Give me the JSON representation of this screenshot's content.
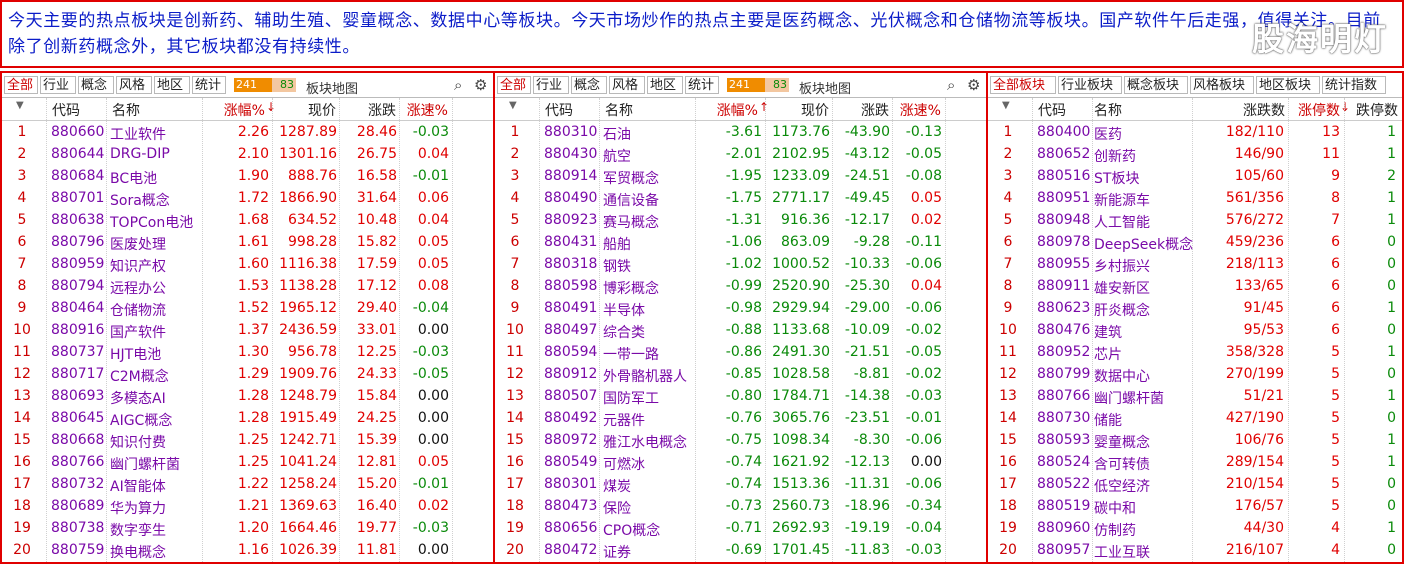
{
  "banner": {
    "text": "今天主要的热点板块是创新药、辅助生殖、婴童概念、数据中心等板块。今天市场炒作的热点主要是医药概念、光伏概念和仓储物流等板块。国产软件午后走强，值得关注。目前除了创新药概念外，其它板块都没有持续性。",
    "watermark": "股海明灯"
  },
  "panel1": {
    "tabs": [
      "全部",
      "行业",
      "概念",
      "风格",
      "地区",
      "统计"
    ],
    "up_count": "241",
    "down_count": "83",
    "map_label": "板块地图",
    "columns": [
      "代码",
      "名称",
      "涨幅%",
      "现价",
      "涨跌",
      "涨速%"
    ],
    "sort_indicator": "↓",
    "rows": [
      [
        "1",
        "880660",
        "工业软件",
        "2.26",
        "1287.89",
        "28.46",
        "-0.03"
      ],
      [
        "2",
        "880644",
        "DRG-DIP",
        "2.10",
        "1301.16",
        "26.75",
        "0.04"
      ],
      [
        "3",
        "880684",
        "BC电池",
        "1.90",
        "888.76",
        "16.58",
        "-0.01"
      ],
      [
        "4",
        "880701",
        "Sora概念",
        "1.72",
        "1866.90",
        "31.64",
        "0.06"
      ],
      [
        "5",
        "880638",
        "TOPCon电池",
        "1.68",
        "634.52",
        "10.48",
        "0.04"
      ],
      [
        "6",
        "880796",
        "医废处理",
        "1.61",
        "998.28",
        "15.82",
        "0.05"
      ],
      [
        "7",
        "880959",
        "知识产权",
        "1.60",
        "1116.38",
        "17.59",
        "0.05"
      ],
      [
        "8",
        "880794",
        "远程办公",
        "1.53",
        "1138.28",
        "17.12",
        "0.08"
      ],
      [
        "9",
        "880464",
        "仓储物流",
        "1.52",
        "1965.12",
        "29.40",
        "-0.04"
      ],
      [
        "10",
        "880916",
        "国产软件",
        "1.37",
        "2436.59",
        "33.01",
        "0.00"
      ],
      [
        "11",
        "880737",
        "HJT电池",
        "1.30",
        "956.78",
        "12.25",
        "-0.03"
      ],
      [
        "12",
        "880717",
        "C2M概念",
        "1.29",
        "1909.76",
        "24.33",
        "-0.05"
      ],
      [
        "13",
        "880693",
        "多模态AI",
        "1.28",
        "1248.79",
        "15.84",
        "0.00"
      ],
      [
        "14",
        "880645",
        "AIGC概念",
        "1.28",
        "1915.49",
        "24.25",
        "0.00"
      ],
      [
        "15",
        "880668",
        "知识付费",
        "1.25",
        "1242.71",
        "15.39",
        "0.00"
      ],
      [
        "16",
        "880766",
        "幽门螺杆菌",
        "1.25",
        "1041.24",
        "12.81",
        "0.05"
      ],
      [
        "17",
        "880732",
        "AI智能体",
        "1.22",
        "1258.24",
        "15.20",
        "-0.01"
      ],
      [
        "18",
        "880689",
        "华为算力",
        "1.21",
        "1369.63",
        "16.40",
        "0.02"
      ],
      [
        "19",
        "880738",
        "数字孪生",
        "1.20",
        "1664.46",
        "19.77",
        "-0.03"
      ],
      [
        "20",
        "880759",
        "换电概念",
        "1.16",
        "1026.39",
        "11.81",
        "0.00"
      ]
    ]
  },
  "panel2": {
    "tabs": [
      "全部",
      "行业",
      "概念",
      "风格",
      "地区",
      "统计"
    ],
    "up_count": "241",
    "down_count": "83",
    "map_label": "板块地图",
    "columns": [
      "代码",
      "名称",
      "涨幅%",
      "现价",
      "涨跌",
      "涨速%"
    ],
    "sort_indicator": "↑",
    "rows": [
      [
        "1",
        "880310",
        "石油",
        "-3.61",
        "1173.76",
        "-43.90",
        "-0.13"
      ],
      [
        "2",
        "880430",
        "航空",
        "-2.01",
        "2102.95",
        "-43.12",
        "-0.05"
      ],
      [
        "3",
        "880914",
        "军贸概念",
        "-1.95",
        "1233.09",
        "-24.51",
        "-0.08"
      ],
      [
        "4",
        "880490",
        "通信设备",
        "-1.75",
        "2771.17",
        "-49.45",
        "0.05"
      ],
      [
        "5",
        "880923",
        "赛马概念",
        "-1.31",
        "916.36",
        "-12.17",
        "0.02"
      ],
      [
        "6",
        "880431",
        "船舶",
        "-1.06",
        "863.09",
        "-9.28",
        "-0.11"
      ],
      [
        "7",
        "880318",
        "钢铁",
        "-1.02",
        "1000.52",
        "-10.33",
        "-0.06"
      ],
      [
        "8",
        "880598",
        "博彩概念",
        "-0.99",
        "2520.90",
        "-25.30",
        "0.04"
      ],
      [
        "9",
        "880491",
        "半导体",
        "-0.98",
        "2929.94",
        "-29.00",
        "-0.06"
      ],
      [
        "10",
        "880497",
        "综合类",
        "-0.88",
        "1133.68",
        "-10.09",
        "-0.02"
      ],
      [
        "11",
        "880594",
        "一带一路",
        "-0.86",
        "2491.30",
        "-21.51",
        "-0.05"
      ],
      [
        "12",
        "880912",
        "外骨骼机器人",
        "-0.85",
        "1028.58",
        "-8.81",
        "-0.02"
      ],
      [
        "13",
        "880507",
        "国防军工",
        "-0.80",
        "1784.71",
        "-14.38",
        "-0.03"
      ],
      [
        "14",
        "880492",
        "元器件",
        "-0.76",
        "3065.76",
        "-23.51",
        "-0.01"
      ],
      [
        "15",
        "880972",
        "雅江水电概念",
        "-0.75",
        "1098.34",
        "-8.30",
        "-0.06"
      ],
      [
        "16",
        "880549",
        "可燃冰",
        "-0.74",
        "1621.92",
        "-12.13",
        "0.00"
      ],
      [
        "17",
        "880301",
        "煤炭",
        "-0.74",
        "1513.36",
        "-11.31",
        "-0.06"
      ],
      [
        "18",
        "880473",
        "保险",
        "-0.73",
        "2560.73",
        "-18.96",
        "-0.34"
      ],
      [
        "19",
        "880656",
        "CPO概念",
        "-0.71",
        "2692.93",
        "-19.19",
        "-0.04"
      ],
      [
        "20",
        "880472",
        "证券",
        "-0.69",
        "1701.45",
        "-11.83",
        "-0.03"
      ]
    ]
  },
  "panel3": {
    "tabs": [
      "全部板块",
      "行业板块",
      "概念板块",
      "风格板块",
      "地区板块",
      "统计指数"
    ],
    "columns": [
      "代码",
      "名称",
      "涨跌数",
      "涨停数",
      "跌停数"
    ],
    "sort_indicator": "↓",
    "rows": [
      [
        "1",
        "880400",
        "医药",
        "182/110",
        "13",
        "1"
      ],
      [
        "2",
        "880652",
        "创新药",
        "146/90",
        "11",
        "1"
      ],
      [
        "3",
        "880516",
        "ST板块",
        "105/60",
        "9",
        "2"
      ],
      [
        "4",
        "880951",
        "新能源车",
        "561/356",
        "8",
        "1"
      ],
      [
        "5",
        "880948",
        "人工智能",
        "576/272",
        "7",
        "1"
      ],
      [
        "6",
        "880978",
        "DeepSeek概念",
        "459/236",
        "6",
        "0"
      ],
      [
        "7",
        "880955",
        "乡村振兴",
        "218/113",
        "6",
        "0"
      ],
      [
        "8",
        "880911",
        "雄安新区",
        "133/65",
        "6",
        "0"
      ],
      [
        "9",
        "880623",
        "肝炎概念",
        "91/45",
        "6",
        "1"
      ],
      [
        "10",
        "880476",
        "建筑",
        "95/53",
        "6",
        "0"
      ],
      [
        "11",
        "880952",
        "芯片",
        "358/328",
        "5",
        "1"
      ],
      [
        "12",
        "880799",
        "数据中心",
        "270/199",
        "5",
        "0"
      ],
      [
        "13",
        "880766",
        "幽门螺杆菌",
        "51/21",
        "5",
        "1"
      ],
      [
        "14",
        "880730",
        "储能",
        "427/190",
        "5",
        "0"
      ],
      [
        "15",
        "880593",
        "婴童概念",
        "106/76",
        "5",
        "1"
      ],
      [
        "16",
        "880524",
        "含可转债",
        "289/154",
        "5",
        "1"
      ],
      [
        "17",
        "880522",
        "低空经济",
        "210/154",
        "5",
        "0"
      ],
      [
        "18",
        "880519",
        "碳中和",
        "176/57",
        "5",
        "0"
      ],
      [
        "19",
        "880960",
        "仿制药",
        "44/30",
        "4",
        "1"
      ],
      [
        "20",
        "880957",
        "工业互联",
        "216/107",
        "4",
        "0"
      ]
    ]
  },
  "colors": {
    "up": "#e00000",
    "down": "#0a8a0a",
    "name": "#7a0aa8",
    "frame": "#e00000",
    "banner_text": "#0b1cc8"
  },
  "icons": [
    "search-icon",
    "gear-icon"
  ]
}
